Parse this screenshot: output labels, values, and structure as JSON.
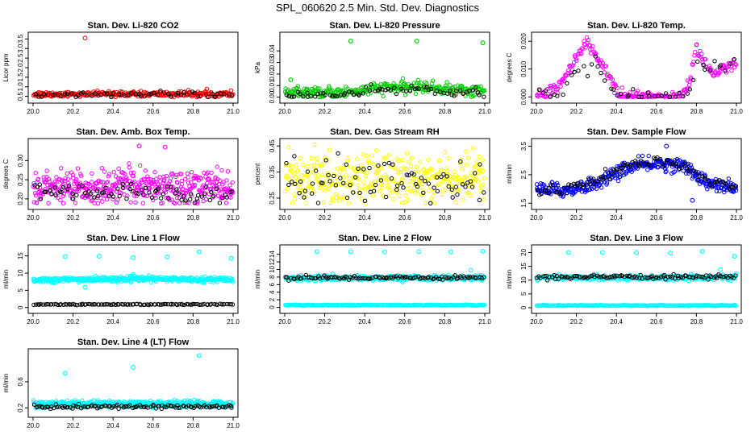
{
  "page_title": "SPL_060620  2.5 Min. Std. Dev. Diagnostics",
  "colors": {
    "red": "#ff0000",
    "green": "#00cc00",
    "magenta": "#ff00ff",
    "yellow": "#ffff00",
    "blue": "#0000ff",
    "cyan": "#00ffff",
    "black": "#000000"
  },
  "chart_data": [
    {
      "id": "co2",
      "type": "scatter",
      "title": "Stan. Dev. Li-820 CO2",
      "ylabel": "Licor ppm",
      "xlim": [
        20.0,
        21.0
      ],
      "xticks": [
        "20.0",
        "20.2",
        "20.4",
        "20.6",
        "20.8",
        "21.0"
      ],
      "ylim": [
        0.4,
        3.6
      ],
      "yticks": [
        "0.5",
        "1.0",
        "1.5",
        "2.0",
        "2.5",
        "3.0",
        "3.5"
      ],
      "primary_color": "red",
      "series": [
        {
          "name": "colored",
          "color": "red",
          "model": [
            [
              20.0,
              0.62
            ],
            [
              21.0,
              0.62
            ]
          ],
          "noise": 0.07,
          "n": 300
        },
        {
          "name": "black",
          "color": "black",
          "model": [
            [
              20.0,
              0.6
            ],
            [
              21.0,
              0.6
            ]
          ],
          "noise": 0.06,
          "n": 60
        }
      ],
      "outliers": [
        {
          "x": 20.26,
          "y": 3.55
        }
      ]
    },
    {
      "id": "pressure",
      "type": "scatter",
      "title": "Stan. Dev. Li-820 Pressure",
      "ylabel": "kPa",
      "xlim": [
        20.0,
        21.0
      ],
      "xticks": [
        "20.0",
        "20.2",
        "20.4",
        "20.6",
        "20.8",
        "21.0"
      ],
      "ylim": [
        -0.001,
        0.052
      ],
      "yticks": [
        "0.00",
        "0.01",
        "0.02",
        "0.03",
        "0.04"
      ],
      "primary_color": "green",
      "series": [
        {
          "name": "colored",
          "color": "green",
          "model": [
            [
              20.0,
              0.004
            ],
            [
              20.3,
              0.004
            ],
            [
              20.5,
              0.008
            ],
            [
              20.7,
              0.009
            ],
            [
              20.85,
              0.006
            ],
            [
              21.0,
              0.005
            ]
          ],
          "noise": 0.0025,
          "n": 320
        },
        {
          "name": "black",
          "color": "black",
          "model": [
            [
              20.0,
              0.001
            ],
            [
              20.3,
              0.002
            ],
            [
              20.5,
              0.006
            ],
            [
              20.7,
              0.007
            ],
            [
              21.0,
              0.003
            ]
          ],
          "noise": 0.002,
          "n": 70
        }
      ],
      "outliers": [
        {
          "x": 20.33,
          "y": 0.0485
        },
        {
          "x": 20.66,
          "y": 0.0485
        },
        {
          "x": 20.99,
          "y": 0.047
        },
        {
          "x": 20.03,
          "y": 0.015
        }
      ]
    },
    {
      "id": "temp",
      "type": "scatter",
      "title": "Stan. Dev. Li-820 Temp.",
      "ylabel": "degrees C",
      "xlim": [
        20.0,
        21.0
      ],
      "xticks": [
        "20.0",
        "20.2",
        "20.4",
        "20.6",
        "20.8",
        "21.0"
      ],
      "ylim": [
        -0.0005,
        0.0215
      ],
      "yticks": [
        "0.000",
        "0.010",
        "0.020"
      ],
      "primary_color": "magenta",
      "series": [
        {
          "name": "colored",
          "color": "magenta",
          "model": [
            [
              20.0,
              0.0
            ],
            [
              20.05,
              0.0
            ],
            [
              20.1,
              0.003
            ],
            [
              20.25,
              0.0195
            ],
            [
              20.33,
              0.012
            ],
            [
              20.42,
              0.0
            ],
            [
              20.7,
              0.0
            ],
            [
              20.76,
              0.004
            ],
            [
              20.8,
              0.0175
            ],
            [
              20.86,
              0.01
            ],
            [
              20.9,
              0.008
            ],
            [
              21.0,
              0.012
            ]
          ],
          "noise": 0.0012,
          "n": 260
        },
        {
          "name": "black",
          "color": "black",
          "model": [
            [
              20.0,
              0.0
            ],
            [
              20.12,
              0.0
            ],
            [
              20.2,
              0.008
            ],
            [
              20.3,
              0.012
            ],
            [
              20.4,
              0.0
            ],
            [
              20.75,
              0.0
            ],
            [
              20.8,
              0.013
            ],
            [
              20.9,
              0.01
            ],
            [
              21.0,
              0.013
            ]
          ],
          "noise": 0.0015,
          "n": 50
        }
      ],
      "outliers": []
    },
    {
      "id": "ambbox",
      "type": "scatter",
      "title": "Stan. Dev. Amb. Box Temp.",
      "ylabel": "degrees C",
      "xlim": [
        20.0,
        21.0
      ],
      "xticks": [
        "20.0",
        "20.2",
        "20.4",
        "20.6",
        "20.8",
        "21.0"
      ],
      "ylim": [
        0.185,
        0.345
      ],
      "yticks": [
        "0.20",
        "0.25",
        "0.30"
      ],
      "primary_color": "magenta",
      "series": [
        {
          "name": "colored",
          "color": "magenta",
          "model": [
            [
              20.0,
              0.225
            ],
            [
              20.5,
              0.235
            ],
            [
              21.0,
              0.23
            ]
          ],
          "noise": 0.022,
          "n": 450
        },
        {
          "name": "black",
          "color": "black",
          "model": [
            [
              20.0,
              0.215
            ],
            [
              21.0,
              0.215
            ]
          ],
          "noise": 0.012,
          "n": 80
        }
      ],
      "outliers": [
        {
          "x": 20.53,
          "y": 0.338
        },
        {
          "x": 20.66,
          "y": 0.335
        }
      ]
    },
    {
      "id": "rh",
      "type": "scatter",
      "title": "Stan. Dev. Gas Stream RH",
      "ylabel": "percent",
      "xlim": [
        20.0,
        21.0
      ],
      "xticks": [
        "20.0",
        "20.2",
        "20.4",
        "20.6",
        "20.8",
        "21.0"
      ],
      "ylim": [
        0.225,
        0.46
      ],
      "yticks": [
        "0.25",
        "0.35",
        "0.45"
      ],
      "primary_color": "yellow",
      "series": [
        {
          "name": "colored",
          "color": "yellow",
          "model": [
            [
              20.0,
              0.32
            ],
            [
              21.0,
              0.32
            ]
          ],
          "noise": 0.05,
          "n": 380
        },
        {
          "name": "black",
          "color": "black",
          "model": [
            [
              20.0,
              0.31
            ],
            [
              21.0,
              0.31
            ]
          ],
          "noise": 0.04,
          "n": 80
        }
      ],
      "outliers": []
    },
    {
      "id": "sampleflow",
      "type": "scatter",
      "title": "Stan. Dev. Sample Flow",
      "ylabel": "ml/min",
      "xlim": [
        20.0,
        21.0
      ],
      "xticks": [
        "20.0",
        "20.2",
        "20.4",
        "20.6",
        "20.8",
        "21.0"
      ],
      "ylim": [
        1.45,
        3.6
      ],
      "yticks": [
        "1.5",
        "2.5",
        "3.5"
      ],
      "primary_color": "blue",
      "series": [
        {
          "name": "colored",
          "color": "blue",
          "model": [
            [
              20.0,
              2.0
            ],
            [
              20.15,
              1.95
            ],
            [
              20.3,
              2.2
            ],
            [
              20.45,
              2.75
            ],
            [
              20.6,
              2.9
            ],
            [
              20.75,
              2.8
            ],
            [
              20.85,
              2.2
            ],
            [
              21.0,
              2.0
            ]
          ],
          "noise": 0.12,
          "n": 380
        },
        {
          "name": "black",
          "color": "black",
          "model": [
            [
              20.0,
              1.9
            ],
            [
              20.15,
              2.0
            ],
            [
              20.3,
              2.3
            ],
            [
              20.45,
              2.8
            ],
            [
              20.6,
              2.95
            ],
            [
              20.75,
              2.75
            ],
            [
              20.85,
              2.3
            ],
            [
              21.0,
              2.1
            ]
          ],
          "noise": 0.1,
          "n": 90
        }
      ],
      "outliers": [
        {
          "x": 20.65,
          "y": 3.5
        },
        {
          "x": 20.78,
          "y": 1.6
        }
      ]
    },
    {
      "id": "line1",
      "type": "scatter",
      "title": "Stan. Dev. Line 1 Flow",
      "ylabel": "ml/min",
      "xlim": [
        20.0,
        21.0
      ],
      "xticks": [
        "20.0",
        "20.2",
        "20.4",
        "20.6",
        "20.8",
        "21.0"
      ],
      "ylim": [
        -0.3,
        16.8
      ],
      "yticks": [
        "0",
        "5",
        "10",
        "15"
      ],
      "primary_color": "cyan",
      "series": [
        {
          "name": "colored",
          "color": "cyan",
          "model": [
            [
              20.0,
              8.0
            ],
            [
              20.5,
              8.3
            ],
            [
              21.0,
              8.1
            ]
          ],
          "noise": 0.35,
          "n": 420
        },
        {
          "name": "black",
          "color": "black",
          "model": [
            [
              20.0,
              0.9
            ],
            [
              21.0,
              0.9
            ]
          ],
          "noise": 0.08,
          "n": 110
        }
      ],
      "outliers": [
        {
          "x": 20.16,
          "y": 14.8
        },
        {
          "x": 20.33,
          "y": 14.9
        },
        {
          "x": 20.5,
          "y": 14.5
        },
        {
          "x": 20.67,
          "y": 14.7
        },
        {
          "x": 20.83,
          "y": 16.2
        },
        {
          "x": 20.99,
          "y": 14.3
        },
        {
          "x": 20.26,
          "y": 5.9
        }
      ]
    },
    {
      "id": "line2",
      "type": "scatter",
      "title": "Stan. Dev. Line 2 Flow",
      "ylabel": "ml/min",
      "xlim": [
        20.0,
        21.0
      ],
      "xticks": [
        "20.0",
        "20.2",
        "20.4",
        "20.6",
        "20.8",
        "21.0"
      ],
      "ylim": [
        -0.3,
        15.2
      ],
      "yticks": [
        "0",
        "2",
        "4",
        "6",
        "8",
        "10",
        "12",
        "14"
      ],
      "primary_color": "cyan",
      "series": [
        {
          "name": "colored",
          "color": "cyan",
          "model": [
            [
              20.0,
              7.7
            ],
            [
              21.0,
              7.8
            ]
          ],
          "noise": 0.35,
          "n": 300
        },
        {
          "name": "cyanbase",
          "color": "cyan",
          "model": [
            [
              20.0,
              0.6
            ],
            [
              21.0,
              0.6
            ]
          ],
          "noise": 0.06,
          "n": 260
        },
        {
          "name": "black",
          "color": "black",
          "model": [
            [
              20.0,
              7.8
            ],
            [
              21.0,
              7.9
            ]
          ],
          "noise": 0.25,
          "n": 110
        }
      ],
      "outliers": [
        {
          "x": 20.16,
          "y": 14.7
        },
        {
          "x": 20.33,
          "y": 14.7
        },
        {
          "x": 20.5,
          "y": 14.6
        },
        {
          "x": 20.67,
          "y": 14.7
        },
        {
          "x": 20.83,
          "y": 14.6
        },
        {
          "x": 20.99,
          "y": 14.8
        },
        {
          "x": 20.93,
          "y": 9.8
        }
      ]
    },
    {
      "id": "line3",
      "type": "scatter",
      "title": "Stan. Dev. Line 3 Flow",
      "ylabel": "ml/min",
      "xlim": [
        20.0,
        21.0
      ],
      "xticks": [
        "20.0",
        "20.2",
        "20.4",
        "20.6",
        "20.8",
        "21.0"
      ],
      "ylim": [
        -0.3,
        21.0
      ],
      "yticks": [
        "0",
        "5",
        "10",
        "15",
        "20"
      ],
      "primary_color": "cyan",
      "series": [
        {
          "name": "colored",
          "color": "cyan",
          "model": [
            [
              20.0,
              10.8
            ],
            [
              21.0,
              11.0
            ]
          ],
          "noise": 0.45,
          "n": 300
        },
        {
          "name": "cyanbase",
          "color": "cyan",
          "model": [
            [
              20.0,
              0.8
            ],
            [
              21.0,
              0.8
            ]
          ],
          "noise": 0.08,
          "n": 260
        },
        {
          "name": "black",
          "color": "black",
          "model": [
            [
              20.0,
              11.0
            ],
            [
              21.0,
              11.2
            ]
          ],
          "noise": 0.35,
          "n": 110
        }
      ],
      "outliers": [
        {
          "x": 20.16,
          "y": 20.0
        },
        {
          "x": 20.5,
          "y": 19.9
        },
        {
          "x": 20.67,
          "y": 19.8
        },
        {
          "x": 20.83,
          "y": 20.4
        },
        {
          "x": 20.99,
          "y": 18.6
        },
        {
          "x": 20.33,
          "y": 20.0
        },
        {
          "x": 20.92,
          "y": 13.8
        }
      ]
    },
    {
      "id": "line4",
      "type": "scatter",
      "title": "Stan. Dev. Line 4 (LT) Flow",
      "ylabel": "ml/min",
      "xlim": [
        20.0,
        21.0
      ],
      "xticks": [
        "20.0",
        "20.2",
        "20.4",
        "20.6",
        "20.8",
        "21.0"
      ],
      "ylim": [
        0.13,
        1.03
      ],
      "yticks": [
        "0.2",
        "0.6"
      ],
      "primary_color": "cyan",
      "series": [
        {
          "name": "colored",
          "color": "cyan",
          "model": [
            [
              20.0,
              0.26
            ],
            [
              21.0,
              0.26
            ]
          ],
          "noise": 0.025,
          "n": 450
        },
        {
          "name": "black",
          "color": "black",
          "model": [
            [
              20.0,
              0.22
            ],
            [
              21.0,
              0.22
            ]
          ],
          "noise": 0.015,
          "n": 110
        }
      ],
      "outliers": [
        {
          "x": 20.16,
          "y": 0.73
        },
        {
          "x": 20.5,
          "y": 0.82
        },
        {
          "x": 20.83,
          "y": 1.0
        }
      ]
    }
  ]
}
